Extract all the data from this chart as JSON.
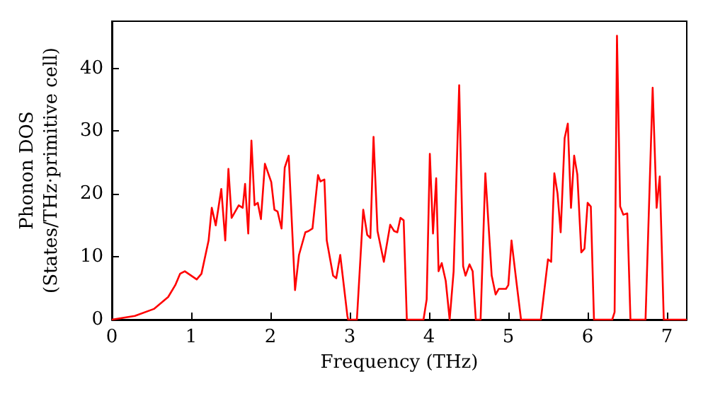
{
  "chart_data": {
    "type": "line",
    "xlabel": "Frequency (THz)",
    "ylabel": "Phonon DOS\n(States/THz·primitive cell)",
    "x": [
      0,
      0.29,
      0.53,
      0.71,
      0.8,
      0.86,
      0.92,
      1.07,
      1.13,
      1.22,
      1.26,
      1.31,
      1.38,
      1.43,
      1.47,
      1.51,
      1.6,
      1.65,
      1.68,
      1.72,
      1.76,
      1.8,
      1.84,
      1.88,
      1.93,
      2.01,
      2.05,
      2.09,
      2.14,
      2.18,
      2.23,
      2.31,
      2.36,
      2.44,
      2.48,
      2.53,
      2.6,
      2.63,
      2.68,
      2.71,
      2.79,
      2.83,
      2.88,
      2.97,
      2.98,
      3.09,
      3.17,
      3.22,
      3.26,
      3.3,
      3.35,
      3.43,
      3.51,
      3.56,
      3.6,
      3.64,
      3.68,
      3.72,
      3.93,
      3.97,
      4.01,
      4.05,
      4.09,
      4.12,
      4.16,
      4.21,
      4.26,
      4.31,
      4.38,
      4.43,
      4.46,
      4.51,
      4.55,
      4.59,
      4.65,
      4.71,
      4.79,
      4.84,
      4.88,
      4.97,
      5.0,
      5.04,
      5.1,
      5.16,
      5.41,
      5.5,
      5.54,
      5.58,
      5.62,
      5.66,
      5.71,
      5.75,
      5.79,
      5.83,
      5.87,
      5.92,
      5.96,
      6.0,
      6.04,
      6.08,
      6.31,
      6.34,
      6.37,
      6.41,
      6.45,
      6.5,
      6.54,
      6.73,
      6.82,
      6.87,
      6.91,
      6.96,
      7.25
    ],
    "series": [
      {
        "color": "#ff0000",
        "values": [
          0,
          0.6,
          1.7,
          3.6,
          5.5,
          7.3,
          7.7,
          6.4,
          7.3,
          12.6,
          17.8,
          15,
          20.8,
          12.6,
          24,
          16.2,
          18.2,
          17.8,
          21.6,
          13.7,
          28.5,
          18.2,
          18.6,
          16,
          24.8,
          21.9,
          17.5,
          17.2,
          14.5,
          24.2,
          26.1,
          4.7,
          10.3,
          13.9,
          14.1,
          14.5,
          23,
          22,
          22.3,
          12.6,
          7,
          6.6,
          10.3,
          0.6,
          0,
          0,
          17.5,
          13.5,
          13,
          29.1,
          14.1,
          9.2,
          15.1,
          14.1,
          13.9,
          16.2,
          15.8,
          0,
          0,
          3.2,
          26.4,
          13.7,
          22.5,
          7.7,
          9,
          6.2,
          0,
          7.7,
          37.3,
          8.5,
          7,
          8.8,
          7.7,
          0,
          0,
          23.3,
          7,
          4,
          4.9,
          4.9,
          5.5,
          12.6,
          6.2,
          0,
          0,
          9.6,
          9.2,
          23.3,
          20.1,
          13.9,
          28.9,
          31.2,
          17.8,
          26.1,
          23.1,
          10.7,
          11.3,
          18.6,
          18,
          0,
          0,
          1.2,
          45.2,
          18,
          16.7,
          16.9,
          0,
          0,
          36.9,
          17.8,
          22.8,
          0,
          0
        ]
      }
    ],
    "xlim": [
      0,
      7.25
    ],
    "xticks": [
      0,
      1,
      2,
      3,
      4,
      5,
      6,
      7
    ],
    "ylim": [
      0,
      47.5
    ],
    "yticks": [
      0,
      10,
      20,
      30,
      40
    ],
    "marker": "none",
    "line_style": "solid"
  }
}
